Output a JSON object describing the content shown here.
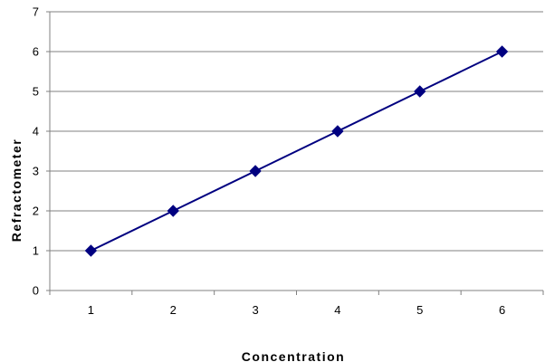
{
  "chart_data": {
    "type": "line",
    "categories": [
      "1",
      "2",
      "3",
      "4",
      "5",
      "6"
    ],
    "series": [
      {
        "values": [
          1,
          2,
          3,
          4,
          5,
          6
        ],
        "color": "#000080",
        "marker": "diamond"
      }
    ],
    "xlabel": "Concentration",
    "ylabel": "Refractometer",
    "ylim": [
      0,
      7
    ],
    "yticks": [
      "0",
      "1",
      "2",
      "3",
      "4",
      "5",
      "6",
      "7"
    ],
    "grid": "horizontal",
    "legend": "none"
  }
}
